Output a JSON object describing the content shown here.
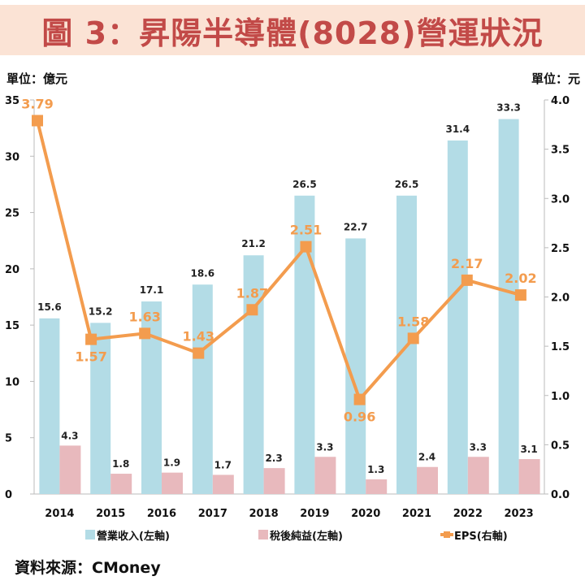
{
  "title": "圖 3：昇陽半導體(8028)營運狀況",
  "unit_left": "單位：億元",
  "unit_right": "單位：元",
  "source": "資料來源：CMoney",
  "colors": {
    "revenue": "#b3dce6",
    "net_income": "#e8b9bd",
    "eps": "#f39c4e",
    "title": "#c24a48",
    "title_bg": "#fbe3d5"
  },
  "chart_data": {
    "type": "bar+line",
    "categories": [
      "2014",
      "2015",
      "2016",
      "2017",
      "2018",
      "2019",
      "2020",
      "2021",
      "2022",
      "2023"
    ],
    "series": [
      {
        "name": "營業收入(左軸)",
        "type": "bar",
        "axis": "left",
        "values": [
          15.6,
          15.2,
          17.1,
          18.6,
          21.2,
          26.5,
          22.7,
          26.5,
          31.4,
          33.3
        ]
      },
      {
        "name": "稅後純益(左軸)",
        "type": "bar",
        "axis": "left",
        "values": [
          4.3,
          1.8,
          1.9,
          1.7,
          2.3,
          3.3,
          1.3,
          2.4,
          3.3,
          3.1
        ]
      },
      {
        "name": "EPS(右軸)",
        "type": "line",
        "axis": "right",
        "values": [
          3.79,
          1.57,
          1.63,
          1.43,
          1.87,
          2.51,
          0.96,
          1.58,
          2.17,
          2.02
        ]
      }
    ],
    "left_axis": {
      "range": [
        0,
        35
      ],
      "ticks": [
        "0",
        "5",
        "10",
        "15",
        "20",
        "25",
        "30",
        "35"
      ]
    },
    "right_axis": {
      "range": [
        0,
        4
      ],
      "ticks": [
        "0.0",
        "0.5",
        "1.0",
        "1.5",
        "2.0",
        "2.5",
        "3.0",
        "3.5",
        "4.0"
      ]
    },
    "legend": "bottom",
    "grid": false
  }
}
